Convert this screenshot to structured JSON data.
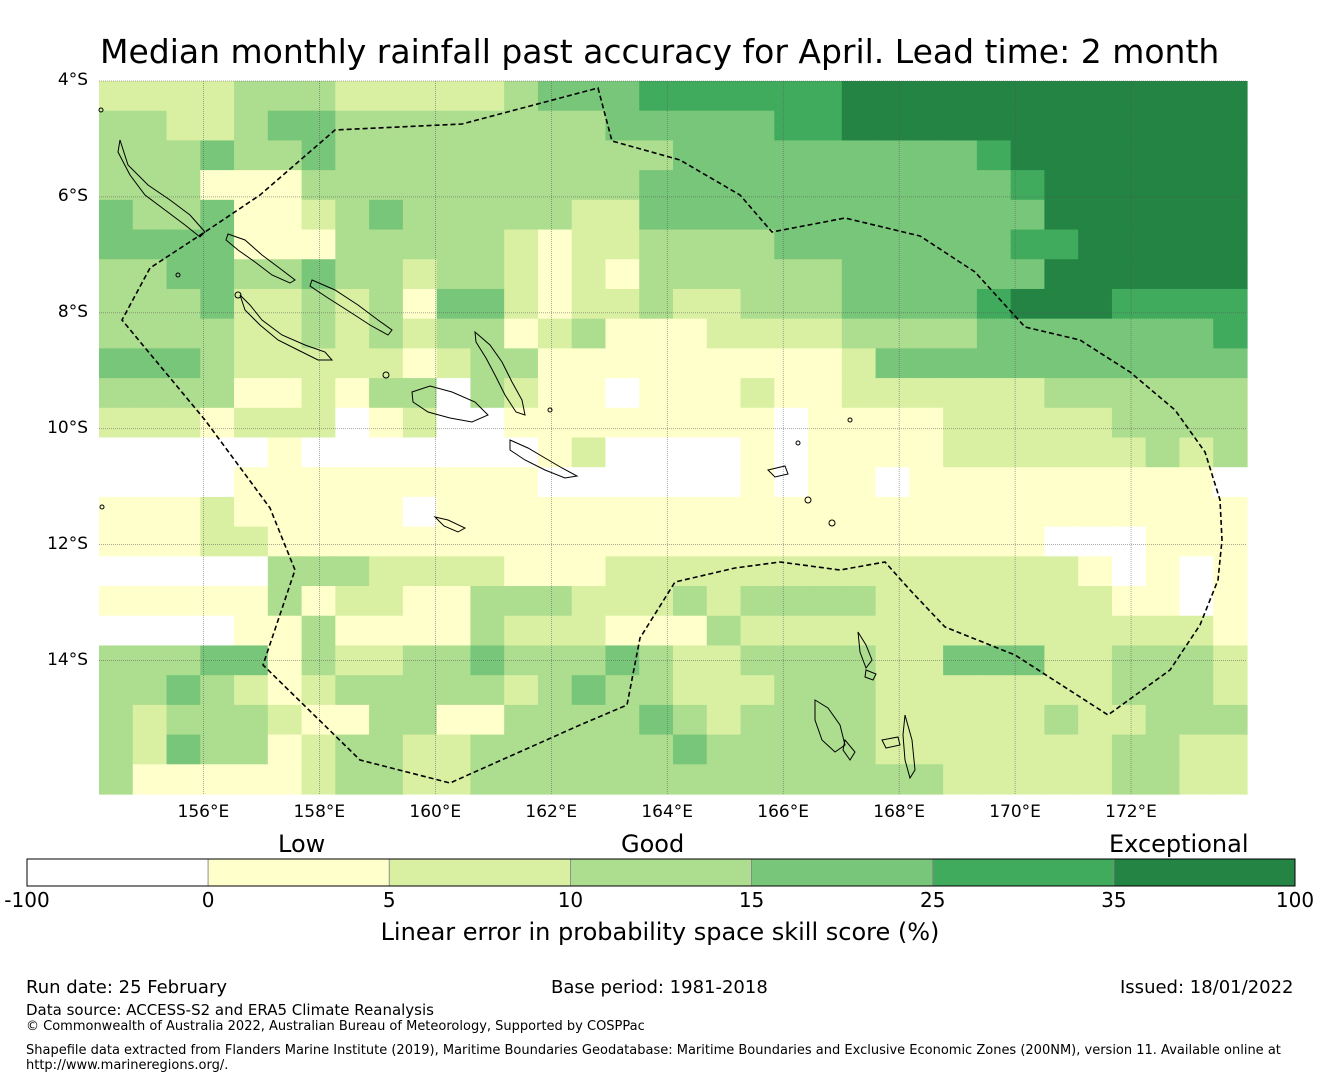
{
  "title": "Median monthly rainfall past accuracy for April. Lead time: 2 month",
  "map": {
    "lat_ticks": [
      "4°S",
      "6°S",
      "8°S",
      "10°S",
      "12°S",
      "14°S"
    ],
    "lon_ticks": [
      "156°E",
      "158°E",
      "160°E",
      "162°E",
      "164°E",
      "166°E",
      "168°E",
      "170°E",
      "172°E"
    ],
    "lon_range": [
      154.2,
      174.0
    ],
    "lat_range": [
      -16.3,
      -4.0
    ],
    "grid_note": "Approx. 0.8° skill grid cells; values are colour-class indices 0-6",
    "cell_classes": [
      "2222333222223444555555666666666666",
      "3322344333333334444455666666666666",
      "3334334333333333344444444456666666",
      "3331113333333333444444444445666666",
      "4334112343333322444444444444666666",
      "4444111333332122333344444445566666",
      "3344334332332121333333444444666666",
      "3334223231442122322333444456665555",
      "3333223232331231112222333344444445",
      "4443222221233111111111244444444444",
      "3333112133032110111211222222333333",
      "2221222012001111111101111222223333",
      "0000010000000120000101111222222323",
      "0000111111111000000101101111111110",
      "1112111110111111111111111111111111",
      "1112211111111111111111111111000111",
      "0000033322221112222222222222210101",
      "1111131221133322232333322222221101",
      "0000113111132221113222222222222221",
      "3334413223343334322333322444223332",
      "3343212333332343322233322222223332",
      "3233321133113333432333322222322333",
      "3243312332233333343333322222223322",
      "3111112332233333333333333222223322"
    ],
    "legend": {
      "category_labels": [
        "Low",
        "Good",
        "Exceptional"
      ],
      "ticks": [
        "-100",
        "0",
        "5",
        "10",
        "15",
        "25",
        "35",
        "100"
      ],
      "colors": [
        "#ffffff",
        "#ffffcc",
        "#d9f0a3",
        "#addd8e",
        "#78c679",
        "#41ab5d",
        "#238443"
      ],
      "label": "Linear error in probability space skill score (%)"
    }
  },
  "footer": {
    "run_date": "Run date: 25 February",
    "base_period": "Base period: 1981-2018",
    "issued": "Issued: 18/01/2022",
    "data_source": "Data source: ACCESS-S2 and ERA5 Climate Reanalysis",
    "copyright": "© Commonwealth of Australia 2022, Australian Bureau of Meteorology, Supported by COSPPac",
    "shapefile": "Shapefile data extracted from Flanders Marine Institute (2019), Maritime Boundaries Geodatabase: Maritime Boundaries and Exclusive Economic Zones (200NM), version 11. Available online at",
    "url": "http://www.marineregions.org/."
  }
}
